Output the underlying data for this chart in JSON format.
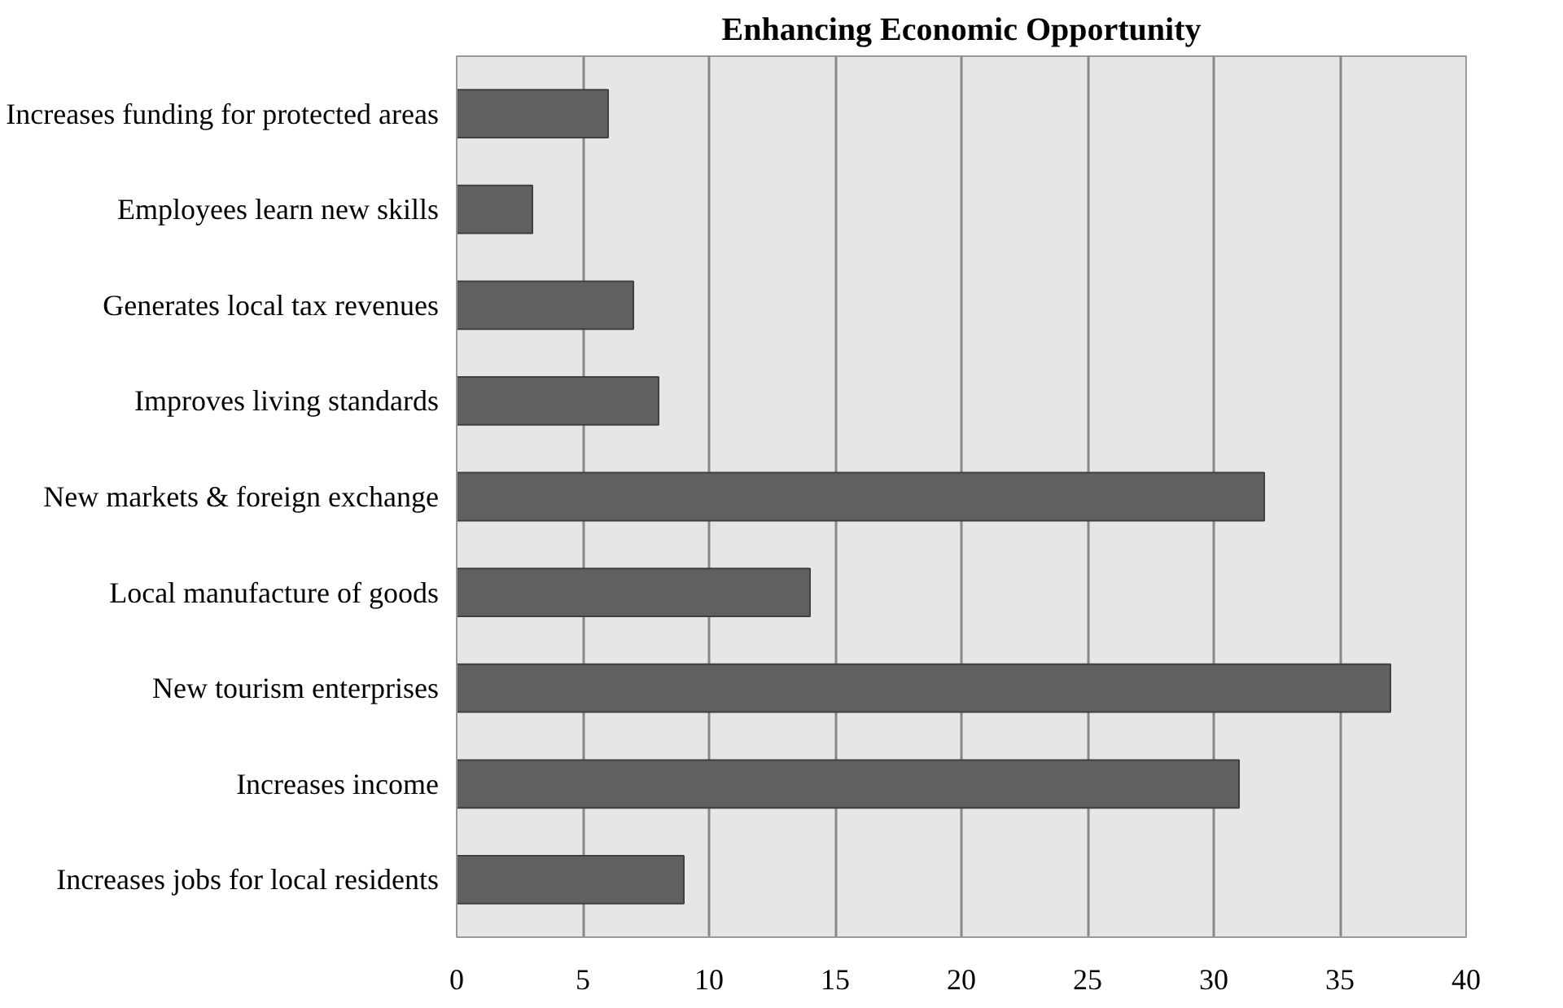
{
  "chart_data": {
    "type": "bar",
    "orientation": "horizontal",
    "title": "Enhancing Economic Opportunity",
    "categories": [
      "Increases funding for protected areas",
      "Employees learn new skills",
      "Generates local tax revenues",
      "Improves living standards",
      "New markets & foreign exchange",
      "Local manufacture of goods",
      "New tourism enterprises",
      "Increases income",
      "Increases jobs for local residents"
    ],
    "values": [
      6,
      3,
      7,
      8,
      32,
      14,
      37,
      31,
      9
    ],
    "color": "#606060",
    "xlim": [
      0,
      40
    ],
    "xticks": [
      0,
      5,
      10,
      15,
      20,
      25,
      30,
      35,
      40
    ],
    "grid": "x"
  }
}
